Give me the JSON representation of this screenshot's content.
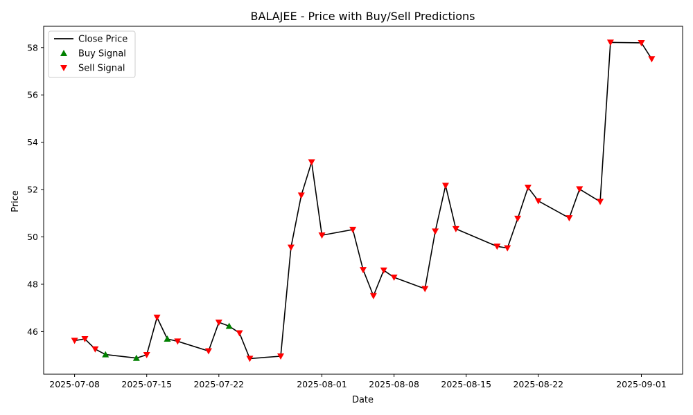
{
  "chart_data": {
    "type": "line",
    "title": "BALAJEE - Price with Buy/Sell Predictions",
    "xlabel": "Date",
    "ylabel": "Price",
    "x_axis_type": "date",
    "xlim": [
      "2025-07-05",
      "2025-09-05"
    ],
    "ylim": [
      44.2,
      58.9
    ],
    "x_ticks": [
      "2025-07-08",
      "2025-07-15",
      "2025-07-22",
      "2025-08-01",
      "2025-08-08",
      "2025-08-15",
      "2025-08-22",
      "2025-09-01"
    ],
    "y_ticks": [
      46,
      48,
      50,
      52,
      54,
      56,
      58
    ],
    "grid": false,
    "legend_position": "top-left",
    "colors": {
      "close": "#000000",
      "buy": "#008000",
      "sell": "#ff0000"
    },
    "series": [
      {
        "name": "Close Price",
        "kind": "line",
        "points": [
          {
            "x": "2025-07-08",
            "y": 45.62
          },
          {
            "x": "2025-07-09",
            "y": 45.69
          },
          {
            "x": "2025-07-10",
            "y": 45.26
          },
          {
            "x": "2025-07-11",
            "y": 45.03
          },
          {
            "x": "2025-07-14",
            "y": 44.88
          },
          {
            "x": "2025-07-15",
            "y": 45.02
          },
          {
            "x": "2025-07-16",
            "y": 46.6
          },
          {
            "x": "2025-07-17",
            "y": 45.69
          },
          {
            "x": "2025-07-18",
            "y": 45.59
          },
          {
            "x": "2025-07-21",
            "y": 45.18
          },
          {
            "x": "2025-07-22",
            "y": 46.39
          },
          {
            "x": "2025-07-23",
            "y": 46.23
          },
          {
            "x": "2025-07-24",
            "y": 45.94
          },
          {
            "x": "2025-07-25",
            "y": 44.86
          },
          {
            "x": "2025-07-28",
            "y": 44.96
          },
          {
            "x": "2025-07-29",
            "y": 49.56
          },
          {
            "x": "2025-07-30",
            "y": 51.76
          },
          {
            "x": "2025-07-31",
            "y": 53.16
          },
          {
            "x": "2025-08-01",
            "y": 50.07
          },
          {
            "x": "2025-08-04",
            "y": 50.31
          },
          {
            "x": "2025-08-05",
            "y": 48.61
          },
          {
            "x": "2025-08-06",
            "y": 47.51
          },
          {
            "x": "2025-08-07",
            "y": 48.59
          },
          {
            "x": "2025-08-08",
            "y": 48.29
          },
          {
            "x": "2025-08-11",
            "y": 47.81
          },
          {
            "x": "2025-08-12",
            "y": 50.24
          },
          {
            "x": "2025-08-13",
            "y": 52.17
          },
          {
            "x": "2025-08-14",
            "y": 50.34
          },
          {
            "x": "2025-08-18",
            "y": 49.6
          },
          {
            "x": "2025-08-19",
            "y": 49.53
          },
          {
            "x": "2025-08-20",
            "y": 50.78
          },
          {
            "x": "2025-08-21",
            "y": 52.09
          },
          {
            "x": "2025-08-22",
            "y": 51.52
          },
          {
            "x": "2025-08-25",
            "y": 50.8
          },
          {
            "x": "2025-08-26",
            "y": 52.02
          },
          {
            "x": "2025-08-28",
            "y": 51.49
          },
          {
            "x": "2025-08-29",
            "y": 58.22
          },
          {
            "x": "2025-09-01",
            "y": 58.2
          },
          {
            "x": "2025-09-02",
            "y": 57.52
          }
        ]
      },
      {
        "name": "Buy Signal",
        "kind": "marker-up",
        "points": [
          {
            "x": "2025-07-11",
            "y": 45.03
          },
          {
            "x": "2025-07-14",
            "y": 44.88
          },
          {
            "x": "2025-07-17",
            "y": 45.69
          },
          {
            "x": "2025-07-23",
            "y": 46.23
          }
        ]
      },
      {
        "name": "Sell Signal",
        "kind": "marker-down",
        "points": [
          {
            "x": "2025-07-08",
            "y": 45.62
          },
          {
            "x": "2025-07-09",
            "y": 45.69
          },
          {
            "x": "2025-07-10",
            "y": 45.26
          },
          {
            "x": "2025-07-15",
            "y": 45.02
          },
          {
            "x": "2025-07-16",
            "y": 46.6
          },
          {
            "x": "2025-07-18",
            "y": 45.59
          },
          {
            "x": "2025-07-21",
            "y": 45.18
          },
          {
            "x": "2025-07-22",
            "y": 46.39
          },
          {
            "x": "2025-07-24",
            "y": 45.94
          },
          {
            "x": "2025-07-25",
            "y": 44.86
          },
          {
            "x": "2025-07-28",
            "y": 44.96
          },
          {
            "x": "2025-07-29",
            "y": 49.56
          },
          {
            "x": "2025-07-30",
            "y": 51.76
          },
          {
            "x": "2025-07-31",
            "y": 53.16
          },
          {
            "x": "2025-08-01",
            "y": 50.07
          },
          {
            "x": "2025-08-04",
            "y": 50.31
          },
          {
            "x": "2025-08-05",
            "y": 48.61
          },
          {
            "x": "2025-08-06",
            "y": 47.51
          },
          {
            "x": "2025-08-07",
            "y": 48.59
          },
          {
            "x": "2025-08-08",
            "y": 48.29
          },
          {
            "x": "2025-08-11",
            "y": 47.81
          },
          {
            "x": "2025-08-12",
            "y": 50.24
          },
          {
            "x": "2025-08-13",
            "y": 52.17
          },
          {
            "x": "2025-08-14",
            "y": 50.34
          },
          {
            "x": "2025-08-18",
            "y": 49.6
          },
          {
            "x": "2025-08-19",
            "y": 49.53
          },
          {
            "x": "2025-08-20",
            "y": 50.78
          },
          {
            "x": "2025-08-21",
            "y": 52.09
          },
          {
            "x": "2025-08-22",
            "y": 51.52
          },
          {
            "x": "2025-08-25",
            "y": 50.8
          },
          {
            "x": "2025-08-26",
            "y": 52.02
          },
          {
            "x": "2025-08-28",
            "y": 51.49
          },
          {
            "x": "2025-08-29",
            "y": 58.22
          },
          {
            "x": "2025-09-01",
            "y": 58.2
          },
          {
            "x": "2025-09-02",
            "y": 57.52
          }
        ]
      }
    ]
  }
}
